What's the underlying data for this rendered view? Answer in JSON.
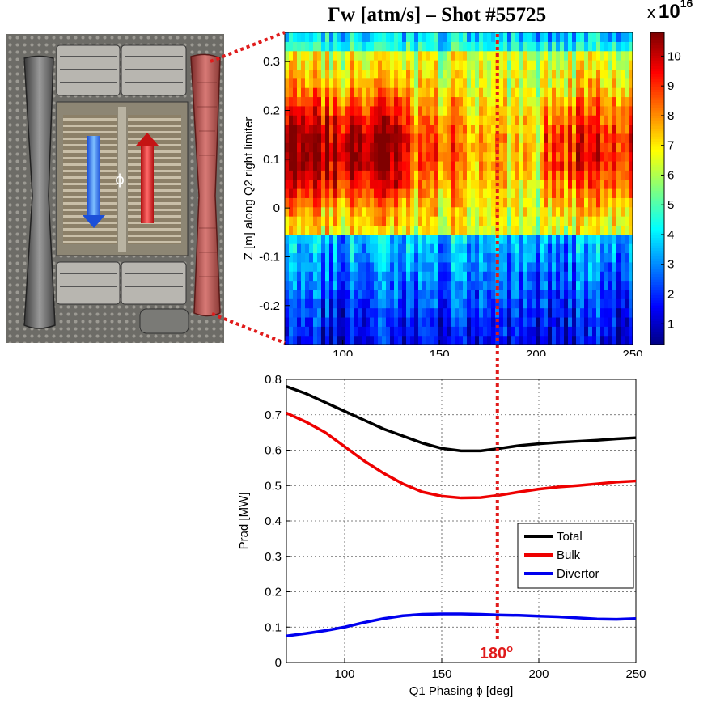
{
  "heatmap": {
    "title": "Γw [atm/s] – Shot #55725",
    "colorbar_multiplier": {
      "prefix": "x",
      "base": "10",
      "exponent": "16"
    },
    "chart_data": {
      "type": "heatmap",
      "title": "Γw [atm/s] – Shot #55725",
      "xlabel": "",
      "ylabel": "Z [m] along Q2 right limiter",
      "xlim": [
        70,
        250
      ],
      "ylim": [
        -0.28,
        0.36
      ],
      "xticks": [
        100,
        150,
        200,
        250
      ],
      "yticks": [
        -0.2,
        -0.1,
        0,
        0.1,
        0.2,
        0.3
      ],
      "colorbar_ticks": [
        1,
        2,
        3,
        4,
        5,
        6,
        7,
        8,
        9,
        10
      ],
      "colorbar_range": [
        0.3,
        10.8
      ],
      "x_bands": [
        {
          "x": [
            70,
            132
          ],
          "peak": 9.6
        },
        {
          "x": [
            132,
            158
          ],
          "peak": 7.8
        },
        {
          "x": [
            158,
            185
          ],
          "peak": 7.0
        },
        {
          "x": [
            185,
            205
          ],
          "peak": 6.5
        },
        {
          "x": [
            205,
            250
          ],
          "peak": 8.6
        }
      ]
    }
  },
  "prad": {
    "chart_data": {
      "type": "line",
      "xlabel": "Q1 Phasing ϕ [deg]",
      "ylabel": "Prad [MW]",
      "xlim": [
        70,
        250
      ],
      "ylim": [
        0,
        0.8
      ],
      "xticks": [
        100,
        150,
        200,
        250
      ],
      "yticks": [
        0,
        0.1,
        0.2,
        0.3,
        0.4,
        0.5,
        0.6,
        0.7,
        0.8
      ],
      "grid": true,
      "legend": "center-right",
      "x": [
        70,
        80,
        90,
        100,
        110,
        120,
        130,
        140,
        150,
        160,
        170,
        180,
        190,
        200,
        210,
        220,
        230,
        240,
        250
      ],
      "series": [
        {
          "name": "Total",
          "color": "#000000",
          "values": [
            0.78,
            0.76,
            0.735,
            0.71,
            0.685,
            0.66,
            0.64,
            0.62,
            0.605,
            0.598,
            0.598,
            0.605,
            0.613,
            0.618,
            0.622,
            0.625,
            0.628,
            0.632,
            0.635
          ]
        },
        {
          "name": "Bulk",
          "color": "#ee0000",
          "values": [
            0.705,
            0.68,
            0.65,
            0.61,
            0.57,
            0.535,
            0.505,
            0.482,
            0.47,
            0.465,
            0.466,
            0.473,
            0.482,
            0.49,
            0.496,
            0.5,
            0.505,
            0.51,
            0.513
          ]
        },
        {
          "name": "Divertor",
          "color": "#0000ee",
          "values": [
            0.075,
            0.082,
            0.09,
            0.1,
            0.113,
            0.124,
            0.132,
            0.136,
            0.137,
            0.137,
            0.136,
            0.134,
            0.133,
            0.131,
            0.129,
            0.126,
            0.123,
            0.122,
            0.124
          ]
        }
      ]
    }
  },
  "annotation": {
    "phase_label": "180",
    "phase_superscript": "o",
    "phase_value": 180,
    "color": "#e01b1b"
  }
}
